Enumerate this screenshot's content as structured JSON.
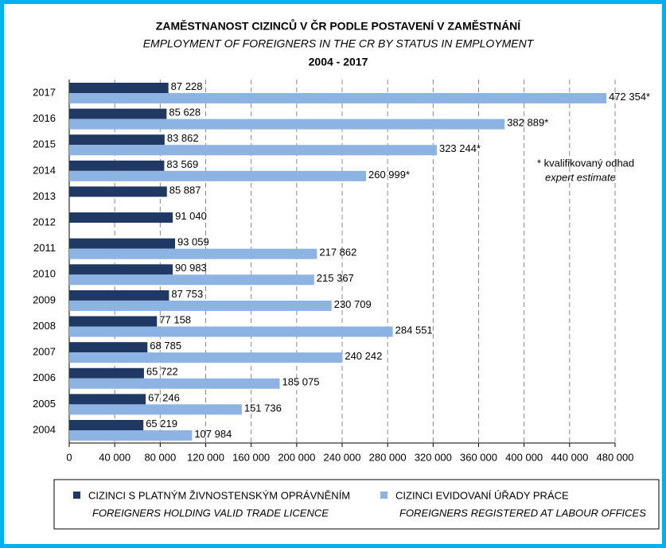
{
  "chart_data": {
    "type": "bar",
    "orientation": "horizontal",
    "title": "ZAMĚSTNANOST CIZINCŮ V ČR PODLE POSTAVENÍ V ZAMĚSTNÁNÍ",
    "subtitle": "EMPLOYMENT OF FOREIGNERS IN THE CR BY STATUS IN EMPLOYMENT",
    "period": "2004 - 2017",
    "annotation": [
      "* kvalifikovaný odhad",
      "expert estimate"
    ],
    "categories": [
      "2004",
      "2005",
      "2006",
      "2007",
      "2008",
      "2009",
      "2010",
      "2011",
      "2012",
      "2013",
      "2014",
      "2015",
      "2016",
      "2017"
    ],
    "series": [
      {
        "name": "CIZINCI S PLATNÝM ŽIVNOSTENSKÝM OPRÁVNĚNÍM",
        "name_en": "FOREIGNERS HOLDING VALID TRADE LICENCE",
        "color": "#1f3864",
        "values": [
          65219,
          67246,
          65722,
          68785,
          77158,
          87753,
          90983,
          93059,
          91040,
          85887,
          83569,
          83862,
          85628,
          87228
        ],
        "value_labels": [
          "65 219",
          "67 246",
          "65 722",
          "68 785",
          "77 158",
          "87 753",
          "90 983",
          "93 059",
          "91 040",
          "85 887",
          "83 569",
          "83 862",
          "85 628",
          "87 228"
        ]
      },
      {
        "name": "CIZINCI EVIDOVANÍ ÚŘADY PRÁCE",
        "name_en": "FOREIGNERS REGISTERED AT LABOUR OFFICES",
        "color": "#8db3e2",
        "values": [
          107984,
          151736,
          185075,
          240242,
          284551,
          230709,
          215367,
          217862,
          null,
          null,
          260999,
          323244,
          382889,
          472354
        ],
        "value_labels": [
          "107 984",
          "151 736",
          "185 075",
          "240 242",
          "284 551",
          "230 709",
          "215 367",
          "217 862",
          null,
          null,
          "260 999*",
          "323 244*",
          "382 889*",
          "472 354*"
        ]
      }
    ],
    "xlim": [
      0,
      480000
    ],
    "xticks": [
      0,
      {
        "value": 40000,
        "label": "40 000"
      },
      {
        "value": 80000,
        "label": "80 000"
      },
      {
        "value": 120000,
        "label": "120 000"
      },
      {
        "value": 160000,
        "label": "160 000"
      },
      {
        "value": 200000,
        "label": "200 000"
      },
      {
        "value": 240000,
        "label": "240 000"
      },
      {
        "value": 280000,
        "label": "280 000"
      },
      {
        "value": 320000,
        "label": "320 000"
      },
      {
        "value": 360000,
        "label": "360 000"
      },
      {
        "value": 400000,
        "label": "400 000"
      },
      {
        "value": 440000,
        "label": "440 000"
      },
      {
        "value": 480000,
        "label": "480 000"
      }
    ],
    "grid": true
  }
}
